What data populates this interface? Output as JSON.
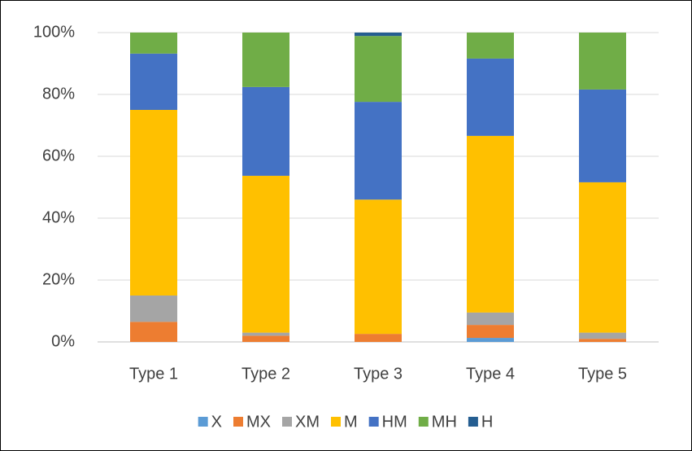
{
  "chart_data": {
    "type": "stacked_bar",
    "categories": [
      "Type 1",
      "Type 2",
      "Type 3",
      "Type 4",
      "Type 5"
    ],
    "series": [
      {
        "name": "X",
        "color": "#5b9bd5",
        "values": [
          0,
          0,
          0,
          1.3,
          0
        ]
      },
      {
        "name": "MX",
        "color": "#ed7d31",
        "values": [
          6.5,
          2,
          2.6,
          4.2,
          1
        ]
      },
      {
        "name": "XM",
        "color": "#a5a5a5",
        "values": [
          8.5,
          1,
          0,
          4,
          2
        ]
      },
      {
        "name": "M",
        "color": "#ffc000",
        "values": [
          60,
          50.7,
          43.4,
          57.1,
          48.6
        ]
      },
      {
        "name": "HM",
        "color": "#4472c4",
        "values": [
          18.2,
          28.7,
          31.6,
          25,
          30
        ]
      },
      {
        "name": "MH",
        "color": "#70ad47",
        "values": [
          6.8,
          17.6,
          21.3,
          8.4,
          18.4
        ]
      },
      {
        "name": "H",
        "color": "#255e91",
        "values": [
          0,
          0,
          1.1,
          0,
          0
        ]
      }
    ],
    "ylim": [
      0,
      100
    ],
    "yticks": [
      {
        "value": 0,
        "label": "0%"
      },
      {
        "value": 20,
        "label": "20%"
      },
      {
        "value": 40,
        "label": "40%"
      },
      {
        "value": 60,
        "label": "60%"
      },
      {
        "value": 80,
        "label": "80%"
      },
      {
        "value": 100,
        "label": "100%"
      }
    ],
    "grid": true,
    "legend": "bottom"
  }
}
